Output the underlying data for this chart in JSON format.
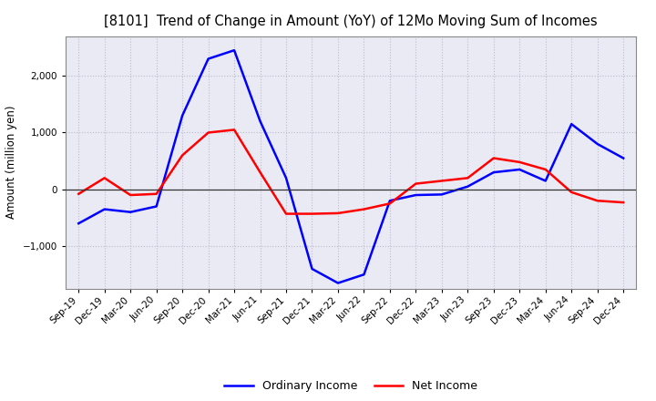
{
  "title": "[8101]  Trend of Change in Amount (YoY) of 12Mo Moving Sum of Incomes",
  "xlabel": "",
  "ylabel": "Amount (million yen)",
  "x_labels": [
    "Sep-19",
    "Dec-19",
    "Mar-20",
    "Jun-20",
    "Sep-20",
    "Dec-20",
    "Mar-21",
    "Jun-21",
    "Sep-21",
    "Dec-21",
    "Mar-22",
    "Jun-22",
    "Sep-22",
    "Dec-22",
    "Mar-23",
    "Jun-23",
    "Sep-23",
    "Dec-23",
    "Mar-24",
    "Jun-24",
    "Sep-24",
    "Dec-24"
  ],
  "ordinary_income": [
    -600,
    -350,
    -400,
    -300,
    1300,
    2300,
    2450,
    1200,
    200,
    -1400,
    -1650,
    -1500,
    -200,
    -100,
    -90,
    50,
    300,
    350,
    150,
    1150,
    800,
    550
  ],
  "net_income": [
    -80,
    200,
    -100,
    -80,
    600,
    1000,
    1050,
    300,
    -430,
    -430,
    -420,
    -350,
    -250,
    100,
    150,
    200,
    550,
    480,
    350,
    -50,
    -200,
    -230
  ],
  "ordinary_income_color": "#0000FF",
  "net_income_color": "#FF0000",
  "ylim": [
    -1750,
    2700
  ],
  "yticks": [
    -1000,
    0,
    1000,
    2000
  ],
  "background_color": "#FFFFFF",
  "plot_bg_color": "#EAEAF4",
  "grid_color": "#BBBBCC",
  "line_width": 1.8,
  "legend_labels": [
    "Ordinary Income",
    "Net Income"
  ],
  "title_fontsize": 10.5,
  "axis_label_fontsize": 8.5,
  "tick_fontsize": 7.5
}
